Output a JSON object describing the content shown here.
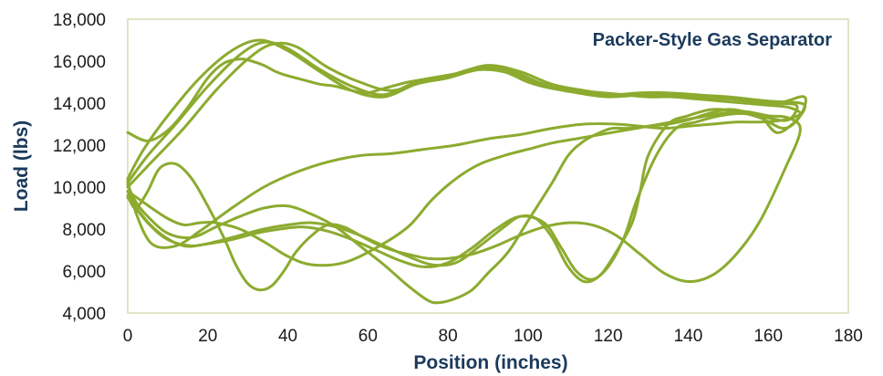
{
  "chart_data": {
    "type": "line",
    "title": "Packer-Style Gas Separator",
    "xlabel": "Position (inches)",
    "ylabel": "Load (lbs)",
    "xlim": [
      0,
      180
    ],
    "ylim": [
      4000,
      18000
    ],
    "xticks": [
      0,
      20,
      40,
      60,
      80,
      100,
      120,
      140,
      160,
      180
    ],
    "yticks": [
      4000,
      6000,
      8000,
      10000,
      12000,
      14000,
      16000,
      18000
    ],
    "xtick_labels": [
      "0",
      "20",
      "40",
      "60",
      "80",
      "100",
      "120",
      "140",
      "160",
      "180"
    ],
    "ytick_labels": [
      "4,000",
      "6,000",
      "8,000",
      "10,000",
      "12,000",
      "14,000",
      "16,000",
      "18,000"
    ],
    "grid": false,
    "legend": "none",
    "line_color": "#8cab2f",
    "frame_color": "#d6dcb4",
    "series": [
      {
        "x": [
          0,
          5,
          12,
          20,
          28,
          34,
          40,
          48,
          56,
          64,
          72,
          80,
          88,
          96,
          104,
          112,
          120,
          130,
          140,
          150,
          160,
          168,
          169,
          166,
          162,
          158,
          154,
          150,
          145,
          140,
          135,
          130,
          125,
          121,
          118,
          114,
          110,
          106,
          100,
          95,
          90,
          86,
          82,
          78,
          75,
          70,
          64,
          58,
          52,
          46,
          40,
          34,
          28,
          22,
          16,
          10,
          5,
          2,
          0
        ],
        "y": [
          10200,
          11500,
          13000,
          14800,
          16300,
          16900,
          16600,
          15600,
          14800,
          14400,
          15000,
          15300,
          15700,
          15500,
          14900,
          14600,
          14400,
          14500,
          14400,
          14300,
          14100,
          14000,
          13700,
          13000,
          12600,
          13400,
          13600,
          13700,
          13500,
          13200,
          13000,
          12900,
          12800,
          12800,
          12600,
          12200,
          11500,
          10200,
          8400,
          6900,
          5900,
          5100,
          4700,
          4500,
          4600,
          5300,
          6300,
          7200,
          8100,
          8700,
          9100,
          9000,
          8600,
          8100,
          7600,
          7800,
          8600,
          9300,
          10100
        ]
      },
      {
        "x": [
          0,
          6,
          14,
          22,
          30,
          36,
          42,
          50,
          58,
          66,
          74,
          82,
          90,
          98,
          106,
          114,
          122,
          132,
          142,
          152,
          162,
          169,
          168,
          164,
          158,
          152,
          146,
          140,
          135,
          130,
          128,
          126,
          122,
          118,
          114,
          110,
          106,
          102,
          98,
          94,
          88,
          82,
          76,
          70,
          64,
          58,
          52,
          46,
          40,
          34,
          28,
          22,
          16,
          10,
          5,
          0
        ],
        "y": [
          10000,
          11200,
          12800,
          14600,
          16100,
          16800,
          16700,
          15700,
          15000,
          14600,
          15100,
          15400,
          15800,
          15500,
          14900,
          14600,
          14400,
          14500,
          14400,
          14200,
          14000,
          14300,
          13400,
          12800,
          13300,
          13600,
          13700,
          13400,
          13000,
          11500,
          9800,
          8300,
          6900,
          5800,
          5500,
          6200,
          7600,
          8500,
          8600,
          8100,
          7200,
          6400,
          6300,
          6700,
          7200,
          7700,
          8100,
          8300,
          8200,
          8000,
          7700,
          7400,
          7200,
          7500,
          8300,
          9500
        ]
      },
      {
        "x": [
          0,
          4,
          10,
          18,
          26,
          33,
          40,
          48,
          56,
          64,
          72,
          80,
          88,
          96,
          104,
          112,
          120,
          130,
          140,
          150,
          160,
          167,
          165,
          160,
          154,
          148,
          142,
          137,
          132,
          127,
          124,
          120,
          116,
          112,
          108,
          104,
          98,
          92,
          86,
          80,
          74,
          68,
          62,
          56,
          50,
          44,
          38,
          32,
          26,
          20,
          14,
          8,
          3,
          0
        ],
        "y": [
          10400,
          11800,
          13400,
          15200,
          16500,
          17000,
          16500,
          15500,
          14600,
          14300,
          14900,
          15200,
          15600,
          15400,
          14800,
          14500,
          14300,
          14400,
          14300,
          14200,
          14000,
          13900,
          13200,
          13300,
          13500,
          13400,
          13100,
          12800,
          11500,
          9300,
          7600,
          6200,
          5600,
          6000,
          7200,
          8300,
          8600,
          8000,
          7100,
          6400,
          6200,
          6500,
          7000,
          7500,
          7900,
          8100,
          8000,
          7800,
          7500,
          7300,
          7200,
          7800,
          8800,
          9800
        ]
      },
      {
        "x": [
          0,
          5,
          10,
          15,
          20,
          24,
          28,
          31,
          34,
          37,
          40,
          44,
          48,
          52,
          56,
          60,
          64,
          70,
          76,
          82,
          88,
          94,
          100,
          106,
          112,
          118,
          124,
          130,
          136,
          142,
          148,
          154,
          160,
          165,
          168,
          164,
          158,
          152,
          146,
          140,
          134,
          128,
          122,
          114,
          106,
          98,
          90,
          82,
          74,
          66,
          58,
          50,
          42,
          34,
          26,
          18,
          12,
          6,
          2,
          0
        ],
        "y": [
          12600,
          12200,
          12700,
          13800,
          15200,
          15900,
          16100,
          16000,
          15800,
          15500,
          15300,
          15100,
          14900,
          14800,
          14600,
          14500,
          14700,
          15000,
          15200,
          15400,
          15600,
          15500,
          15000,
          14700,
          14600,
          14500,
          14400,
          14300,
          14300,
          14200,
          14100,
          14000,
          13900,
          13800,
          13500,
          13200,
          13100,
          13100,
          13000,
          12900,
          12800,
          12900,
          13000,
          13000,
          12800,
          12500,
          12300,
          12000,
          11800,
          11600,
          11500,
          11200,
          10700,
          10000,
          9000,
          7900,
          7200,
          7300,
          8800,
          10300
        ]
      },
      {
        "x": [
          0,
          2,
          5,
          8,
          12,
          16,
          20,
          24,
          27,
          30,
          33,
          36,
          39,
          42,
          46,
          50,
          54,
          58,
          62,
          66,
          70,
          75,
          80,
          86,
          92,
          98,
          104,
          110,
          116,
          122,
          128,
          134,
          140,
          146,
          152,
          158,
          164,
          168,
          165,
          160,
          154,
          148,
          142,
          136,
          130,
          124,
          118,
          112,
          106,
          100,
          94,
          88,
          82,
          76,
          70,
          62,
          54,
          46,
          40,
          34,
          28,
          22,
          18,
          14,
          10,
          6,
          3,
          0
        ],
        "y": [
          9600,
          9000,
          9800,
          10900,
          11100,
          10400,
          9100,
          7600,
          6300,
          5400,
          5100,
          5300,
          6000,
          6900,
          7700,
          8200,
          8100,
          7700,
          7300,
          7000,
          6800,
          6600,
          6600,
          6800,
          7200,
          7700,
          8100,
          8300,
          8200,
          7700,
          6800,
          5900,
          5500,
          5800,
          6800,
          8400,
          10800,
          12700,
          13300,
          13400,
          13600,
          13500,
          13300,
          13100,
          12900,
          12700,
          12500,
          12300,
          12100,
          11800,
          11500,
          11100,
          10400,
          9400,
          8100,
          7100,
          6400,
          6300,
          6700,
          7400,
          8000,
          8300,
          8300,
          8200,
          8500,
          9000,
          9400,
          9800
        ]
      }
    ]
  }
}
